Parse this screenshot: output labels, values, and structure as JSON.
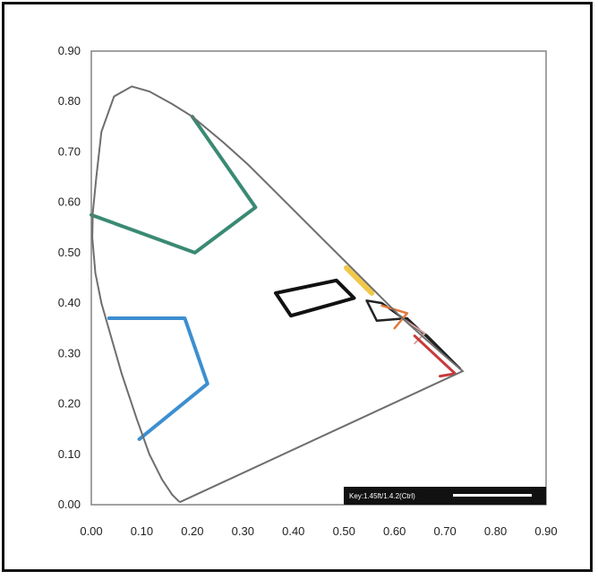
{
  "chart_data": {
    "type": "scatter",
    "title": "",
    "xlabel": "",
    "ylabel": "",
    "xlim": [
      0.0,
      0.9
    ],
    "ylim": [
      0.0,
      0.9
    ],
    "grid": false,
    "x_ticks": [
      "0.00",
      "0.10",
      "0.20",
      "0.30",
      "0.40",
      "0.50",
      "0.60",
      "0.70",
      "0.80",
      "0.90"
    ],
    "y_ticks": [
      "0.00",
      "0.10",
      "0.20",
      "0.30",
      "0.40",
      "0.50",
      "0.60",
      "0.70",
      "0.80",
      "0.90"
    ],
    "spectrum_locus": [
      [
        0.175,
        0.005
      ],
      [
        0.16,
        0.02
      ],
      [
        0.14,
        0.05
      ],
      [
        0.115,
        0.1
      ],
      [
        0.09,
        0.17
      ],
      [
        0.06,
        0.26
      ],
      [
        0.04,
        0.33
      ],
      [
        0.02,
        0.4
      ],
      [
        0.008,
        0.46
      ],
      [
        0.002,
        0.53
      ],
      [
        0.003,
        0.58
      ],
      [
        0.01,
        0.65
      ],
      [
        0.02,
        0.74
      ],
      [
        0.045,
        0.81
      ],
      [
        0.08,
        0.83
      ],
      [
        0.115,
        0.82
      ],
      [
        0.16,
        0.795
      ],
      [
        0.2,
        0.77
      ],
      [
        0.26,
        0.72
      ],
      [
        0.31,
        0.675
      ],
      [
        0.36,
        0.625
      ],
      [
        0.41,
        0.575
      ],
      [
        0.46,
        0.525
      ],
      [
        0.51,
        0.475
      ],
      [
        0.56,
        0.425
      ],
      [
        0.61,
        0.375
      ],
      [
        0.66,
        0.33
      ],
      [
        0.7,
        0.295
      ],
      [
        0.735,
        0.265
      ],
      [
        0.175,
        0.005
      ]
    ],
    "series": [
      {
        "color": "#3a8a73",
        "points": [
          [
            0.2,
            0.77
          ],
          [
            0.325,
            0.59
          ],
          [
            0.205,
            0.5
          ],
          [
            0.0,
            0.575
          ]
        ],
        "closed": false,
        "width": 4
      },
      {
        "color": "#3d8fd0",
        "points": [
          [
            0.035,
            0.37
          ],
          [
            0.185,
            0.37
          ],
          [
            0.23,
            0.24
          ],
          [
            0.095,
            0.13
          ]
        ],
        "closed": false,
        "width": 4
      },
      {
        "color": "#111111",
        "points": [
          [
            0.365,
            0.42
          ],
          [
            0.485,
            0.445
          ],
          [
            0.52,
            0.41
          ],
          [
            0.395,
            0.375
          ]
        ],
        "closed": true,
        "width": 4
      },
      {
        "color": "#f0c84a",
        "points": [
          [
            0.505,
            0.47
          ],
          [
            0.555,
            0.42
          ]
        ],
        "closed": false,
        "width": 6
      },
      {
        "color": "#222222",
        "points": [
          [
            0.545,
            0.405
          ],
          [
            0.575,
            0.4
          ],
          [
            0.665,
            0.335
          ],
          [
            0.73,
            0.27
          ],
          [
            0.625,
            0.37
          ],
          [
            0.565,
            0.365
          ]
        ],
        "closed": true,
        "width": 2.5
      },
      {
        "color": "#e07a3a",
        "points": [
          [
            0.575,
            0.395
          ],
          [
            0.625,
            0.38
          ],
          [
            0.6,
            0.35
          ]
        ],
        "closed": false,
        "width": 2.5
      },
      {
        "color": "#d7a0a0",
        "points": [
          [
            0.615,
            0.37
          ],
          [
            0.66,
            0.34
          ],
          [
            0.64,
            0.32
          ]
        ],
        "closed": false,
        "width": 2
      },
      {
        "color": "#c83a3a",
        "points": [
          [
            0.64,
            0.335
          ],
          [
            0.72,
            0.26
          ],
          [
            0.69,
            0.255
          ]
        ],
        "closed": false,
        "width": 3
      }
    ],
    "legend": {
      "text": "Key:1.45ft/1.4.2(Ctrl)",
      "placement": "bottom-right"
    }
  }
}
